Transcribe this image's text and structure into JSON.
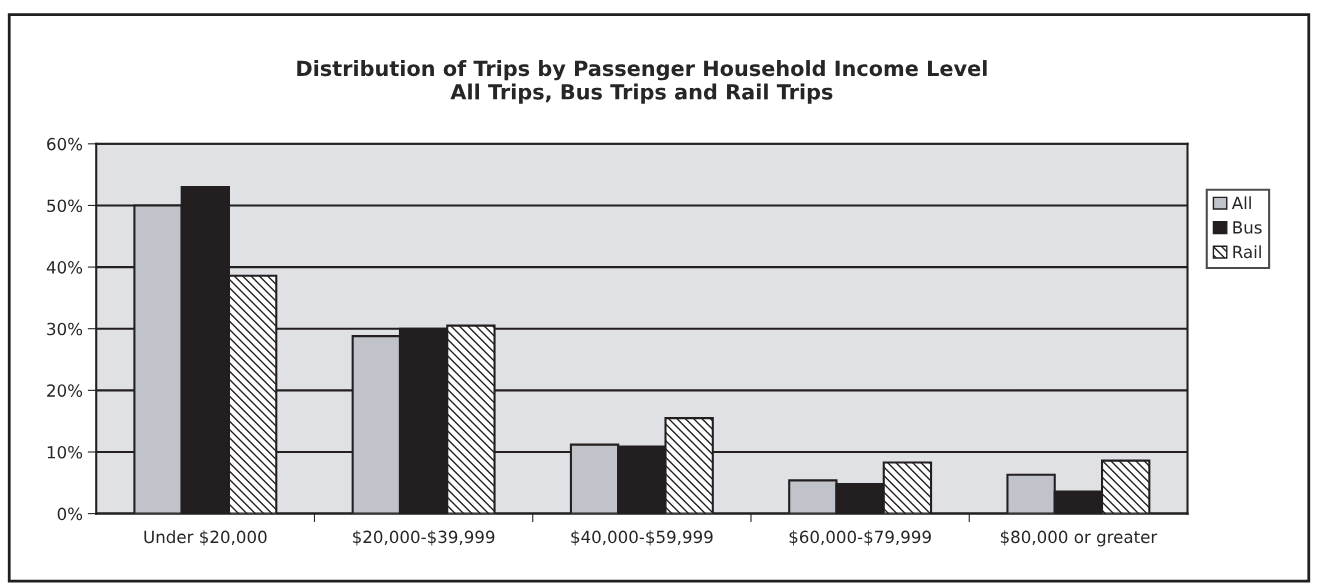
{
  "chart_data": {
    "type": "bar",
    "title": "Distribution of Trips by Passenger Household Income Level\nAll Trips, Bus Trips and Rail Trips",
    "categories": [
      "Under $20,000",
      "$20,000-$39,999",
      "$40,000-$59,999",
      "$60,000-$79,999",
      "$80,000 or greater"
    ],
    "series": [
      {
        "name": "All",
        "color": "#c0c3ca",
        "values": [
          50,
          28.8,
          11.2,
          5.4,
          6.3
        ]
      },
      {
        "name": "Bus",
        "color": "#231f20",
        "values": [
          53,
          30,
          10.9,
          4.8,
          3.6
        ]
      },
      {
        "name": "Rail",
        "color": "#231f20",
        "values": [
          38.6,
          30.5,
          15.5,
          8.3,
          8.6
        ]
      }
    ],
    "ylim": [
      0,
      60
    ],
    "yticks": [
      {
        "value": 0,
        "label": "0%"
      },
      {
        "value": 10,
        "label": "10%"
      },
      {
        "value": 20,
        "label": "20%"
      },
      {
        "value": 30,
        "label": "30%"
      },
      {
        "value": 40,
        "label": "40%"
      },
      {
        "value": 50,
        "label": "50%"
      },
      {
        "value": 60,
        "label": "60%"
      }
    ],
    "grid": "y",
    "legend": "right"
  }
}
